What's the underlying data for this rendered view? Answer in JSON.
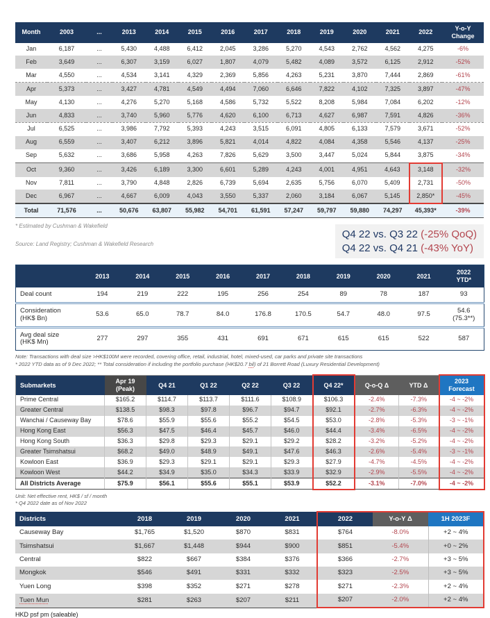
{
  "colors": {
    "header_navy": "#1E3A60",
    "forecast_blue": "#1F76C2",
    "delta_header_gray": "#5E5E5E",
    "peak_header_gray": "#474747",
    "stripe_gray": "#D6D6D6",
    "total_row_blue": "#E9F2F9",
    "negative_red_text": "#B3454E",
    "highlight_box_red": "#E23B33"
  },
  "table1": {
    "footnote": "* Estimated by Cushman & Wakefield",
    "source": "Source: Land Registry; Cushman & Wakefield Research"
  },
  "callout": {
    "line1_label": "Q4 22 vs. Q3 22 ",
    "line1_value": "(-25% QoQ)",
    "line2_label": "Q4 22 vs. Q4 21 ",
    "line2_value": "(-43% YoY)"
  },
  "table2": {
    "note1": "Note: Transactions with deal size >HK$100M were recorded, covering office, retail, industrial, hotel, mixed-used, car parks and private site transactions",
    "note2_a": "* 2022 YTD data as of 9 Dec 2022; ** Total consideration if including the portfolio purchase (HK$20.7 ",
    "note2_b": "bil",
    "note2_c": ") of 21 Borrett Road (Luxury Residential Development)"
  },
  "table3": {
    "unit_note": "Unit: Net effective rent, HK$ / sf / month",
    "data_note": "* Q4 2022 date as of Nov 2022"
  },
  "table4": {
    "footer_a": "HKD ",
    "footer_b": "psf",
    "footer_c": " pm (saleable)"
  },
  "tables": [
    {
      "id": "t1",
      "name": "monthly-residential-transactions",
      "columns": [
        "Month",
        "2003",
        "...",
        "2013",
        "2014",
        "2015",
        "2016",
        "2017",
        "2018",
        "2019",
        "2020",
        "2021",
        "2022",
        "Y-o-Y\nChange"
      ],
      "rows": [
        [
          "Jan",
          "6,187",
          "...",
          "5,430",
          "4,488",
          "6,412",
          "2,045",
          "3,286",
          "5,270",
          "4,543",
          "2,762",
          "4,562",
          "4,275",
          "-6%"
        ],
        [
          "Feb",
          "3,649",
          "...",
          "6,307",
          "3,159",
          "6,027",
          "1,807",
          "4,079",
          "5,482",
          "4,089",
          "3,572",
          "6,125",
          "2,912",
          "-52%"
        ],
        [
          "Mar",
          "4,550",
          "...",
          "4,534",
          "3,141",
          "4,329",
          "2,369",
          "5,856",
          "4,263",
          "5,231",
          "3,870",
          "7,444",
          "2,869",
          "-61%"
        ],
        [
          "Apr",
          "5,373",
          "...",
          "3,427",
          "4,781",
          "4,549",
          "4,494",
          "7,060",
          "6,646",
          "7,822",
          "4,102",
          "7,325",
          "3,897",
          "-47%"
        ],
        [
          "May",
          "4,130",
          "...",
          "4,276",
          "5,270",
          "5,168",
          "4,586",
          "5,732",
          "5,522",
          "8,208",
          "5,984",
          "7,084",
          "6,202",
          "-12%"
        ],
        [
          "Jun",
          "4,833",
          "...",
          "3,740",
          "5,960",
          "5,776",
          "4,620",
          "6,100",
          "6,713",
          "4,627",
          "6,987",
          "7,591",
          "4,826",
          "-36%"
        ],
        [
          "Jul",
          "6,525",
          "...",
          "3,986",
          "7,792",
          "5,393",
          "4,243",
          "3,515",
          "6,091",
          "4,805",
          "6,133",
          "7,579",
          "3,671",
          "-52%"
        ],
        [
          "Aug",
          "6,559",
          "...",
          "3,407",
          "6,212",
          "3,896",
          "5,821",
          "4,014",
          "4,822",
          "4,084",
          "4,358",
          "5,546",
          "4,137",
          "-25%"
        ],
        [
          "Sep",
          "5,632",
          "...",
          "3,686",
          "5,958",
          "4,263",
          "7,826",
          "5,629",
          "3,500",
          "3,447",
          "5,024",
          "5,844",
          "3,875",
          "-34%"
        ],
        [
          "Oct",
          "9,360",
          "...",
          "3,426",
          "6,189",
          "3,300",
          "6,601",
          "5,289",
          "4,243",
          "4,001",
          "4,951",
          "4,643",
          "3,148",
          "-32%"
        ],
        [
          "Nov",
          "7,811",
          "...",
          "3,790",
          "4,848",
          "2,826",
          "6,739",
          "5,694",
          "2,635",
          "5,756",
          "6,070",
          "5,409",
          "2,731",
          "-50%"
        ],
        [
          "Dec",
          "6,967",
          "...",
          "4,667",
          "6,009",
          "4,043",
          "3,550",
          "5,337",
          "2,060",
          "3,184",
          "6,067",
          "5,145",
          "2,850*",
          "-45%"
        ],
        [
          "Total",
          "71,576",
          "...",
          "50,676",
          "63,807",
          "55,982",
          "54,701",
          "61,591",
          "57,247",
          "59,797",
          "59,880",
          "74,297",
          "45,393*",
          "-39%"
        ]
      ]
    },
    {
      "id": "t2",
      "name": "big-deals-summary",
      "columns": [
        "",
        "2013",
        "2014",
        "2015",
        "2016",
        "2017",
        "2018",
        "2019",
        "2020",
        "2021",
        "2022\nYTD*"
      ],
      "rows": [
        [
          "Deal count",
          "194",
          "219",
          "222",
          "195",
          "256",
          "254",
          "89",
          "78",
          "187",
          "93"
        ],
        [
          "Consideration\n(HK$ Bn)",
          "53.6",
          "65.0",
          "78.7",
          "84.0",
          "176.8",
          "170.5",
          "54.7",
          "48.0",
          "97.5",
          "54.6\n(75.3**)"
        ],
        [
          "Avg deal size\n(HK$ Mn)",
          "277",
          "297",
          "355",
          "431",
          "691",
          "671",
          "615",
          "615",
          "522",
          "587"
        ]
      ]
    },
    {
      "id": "t3",
      "name": "submarkets-office-rents",
      "columns": [
        "Submarkets",
        "Apr 19\n(Peak)",
        "Q4 21",
        "Q1 22",
        "Q2 22",
        "Q3 22",
        "Q4 22*",
        "Q-o-Q Δ",
        "YTD Δ",
        "2023\nForecast"
      ],
      "rows": [
        [
          "Prime Central",
          "$165.2",
          "$114.7",
          "$113.7",
          "$111.6",
          "$108.9",
          "$106.3",
          "-2.4%",
          "-7.3%",
          "-4 ~ -2%"
        ],
        [
          "Greater Central",
          "$138.5",
          "$98.3",
          "$97.8",
          "$96.7",
          "$94.7",
          "$92.1",
          "-2.7%",
          "-6.3%",
          "-4 ~ -2%"
        ],
        [
          "Wanchai / Causeway Bay",
          "$78.6",
          "$55.9",
          "$55.6",
          "$55.2",
          "$54.5",
          "$53.0",
          "-2.8%",
          "-5.3%",
          "-3 ~ -1%"
        ],
        [
          "Hong Kong East",
          "$56.3",
          "$47.5",
          "$46.4",
          "$45.7",
          "$46.0",
          "$44.4",
          "-3.4%",
          "-6.5%",
          "-4 ~ -2%"
        ],
        [
          "Hong Kong South",
          "$36.3",
          "$29.8",
          "$29.3",
          "$29.1",
          "$29.2",
          "$28.2",
          "-3.2%",
          "-5.2%",
          "-4 ~ -2%"
        ],
        [
          "Greater Tsimshatsui",
          "$68.2",
          "$49.0",
          "$48.9",
          "$49.1",
          "$47.6",
          "$46.3",
          "-2.6%",
          "-5.4%",
          "-3 ~ -1%"
        ],
        [
          "Kowloon East",
          "$36.9",
          "$29.3",
          "$29.1",
          "$29.1",
          "$29.3",
          "$27.9",
          "-4.7%",
          "-4.5%",
          "-4 ~ -2%"
        ],
        [
          "Kowloon West",
          "$44.2",
          "$34.9",
          "$35.0",
          "$34.3",
          "$33.9",
          "$32.9",
          "-2.9%",
          "-5.5%",
          "-4 ~ -2%"
        ],
        [
          "All Districts Average",
          "$75.9",
          "$56.1",
          "$55.6",
          "$55.1",
          "$53.9",
          "$52.2",
          "-3.1%",
          "-7.0%",
          "-4 ~ -2%"
        ]
      ]
    },
    {
      "id": "t4",
      "name": "districts-retail-rents",
      "columns": [
        "Districts",
        "2018",
        "2019",
        "2020",
        "2021",
        "2022",
        "Y-o-Y Δ",
        "1H 2023F"
      ],
      "rows": [
        [
          "Causeway Bay",
          "$1,765",
          "$1,520",
          "$870",
          "$831",
          "$764",
          "-8.0%",
          "+2 ~ 4%"
        ],
        [
          "Tsimshatsui",
          "$1,667",
          "$1,448",
          "$944",
          "$900",
          "$851",
          "-5.4%",
          "+0 ~ 2%"
        ],
        [
          "Central",
          "$822",
          "$667",
          "$384",
          "$376",
          "$366",
          "-2.7%",
          "+3 ~ 5%"
        ],
        [
          "Mongkok",
          "$546",
          "$491",
          "$331",
          "$332",
          "$323",
          "-2.5%",
          "+3 ~ 5%"
        ],
        [
          "Yuen Long",
          "$398",
          "$352",
          "$271",
          "$278",
          "$271",
          "-2.3%",
          "+2 ~ 4%"
        ],
        [
          "Tuen Mun",
          "$281",
          "$263",
          "$207",
          "$211",
          "$207",
          "-2.0%",
          "+2 ~ 4%"
        ]
      ]
    }
  ]
}
